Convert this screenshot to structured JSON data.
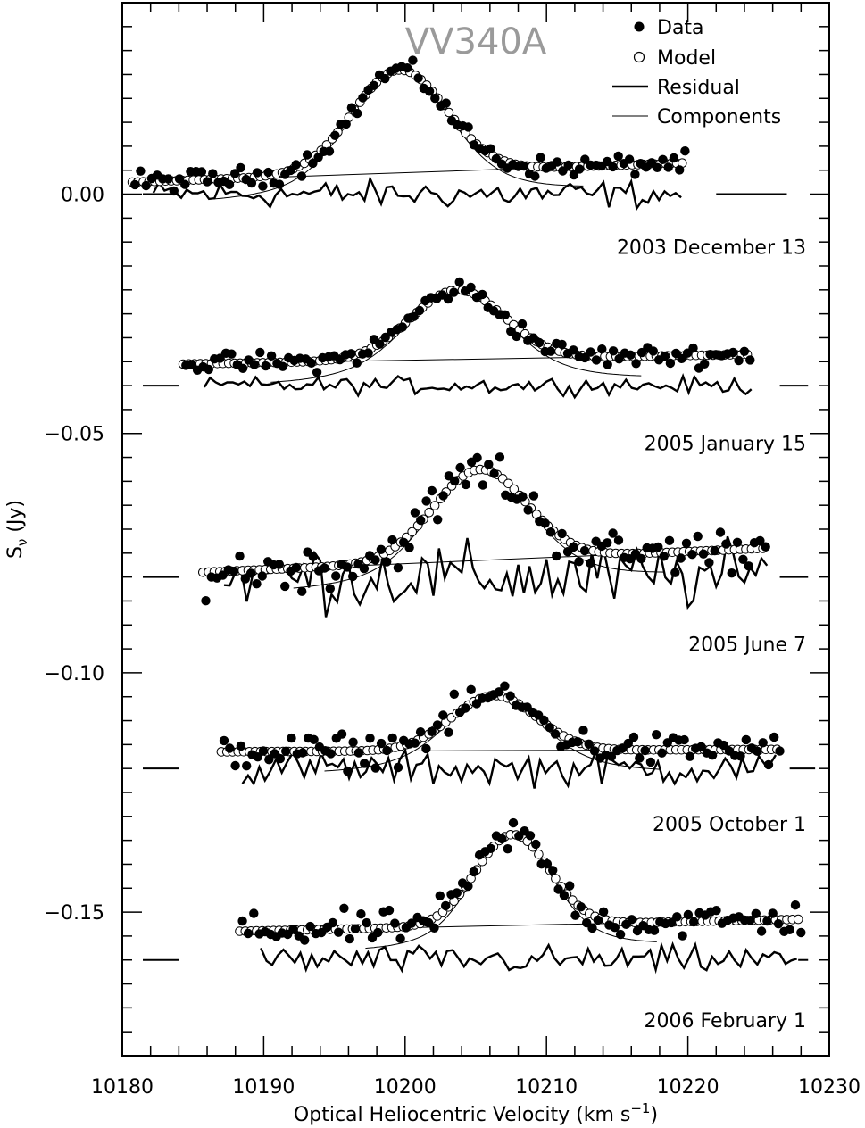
{
  "chart_data": {
    "type": "scatter",
    "title": "VV340A",
    "xlabel": "Optical Heliocentric Velocity (km s",
    "xlabel_sup": "−1",
    "xlabel_end": ")",
    "ylabel": "S",
    "ylabel_sub": "ν",
    "ylabel_end": " (Jy)",
    "xlim": [
      10180,
      10230
    ],
    "ylim": [
      -0.18,
      0.04
    ],
    "x_ticks": [
      10180,
      10190,
      10200,
      10210,
      10220,
      10230
    ],
    "x_tick_labels": [
      "10180",
      "10190",
      "10200",
      "10210",
      "10220",
      "10230"
    ],
    "y_ticks": [
      0.0,
      -0.05,
      -0.1,
      -0.15
    ],
    "y_tick_labels": [
      "0.00",
      "−0.05",
      "−0.10",
      "−0.15"
    ],
    "legend": {
      "position": "top-right",
      "items": [
        {
          "label": "Data",
          "marker": "filled-circle"
        },
        {
          "label": "Model",
          "marker": "open-circle"
        },
        {
          "label": "Residual",
          "marker": "thick-line"
        },
        {
          "label": "Components",
          "marker": "thin-line"
        }
      ]
    },
    "series": [
      {
        "name": "2003 December 13",
        "x_start": 10180.7,
        "x_end": 10219.6,
        "baseline_start": 0.0025,
        "baseline_end": 0.0065,
        "peak_center": 10199.6,
        "peak_amp": 0.0215,
        "peak_sigma": 3.3,
        "noise": 0.0018,
        "residual_level": 0.0,
        "residual_noise": 0.0025,
        "offset_line": [
          10222,
          10227
        ]
      },
      {
        "name": "2005 January 15",
        "x_start": 10184.3,
        "x_end": 10224.2,
        "baseline_start": -0.0355,
        "baseline_end": -0.0335,
        "peak_center": 10203.7,
        "peak_amp": 0.0145,
        "peak_sigma": 3.3,
        "noise": 0.0018,
        "residual_level": -0.04,
        "residual_noise": 0.0015,
        "offset_line": [
          10226.5,
          10228.5
        ]
      },
      {
        "name": "2005 June 7",
        "x_start": 10185.7,
        "x_end": 10225.3,
        "baseline_start": -0.079,
        "baseline_end": -0.074,
        "peak_center": 10205.3,
        "peak_amp": 0.019,
        "peak_sigma": 3.3,
        "noise": 0.004,
        "residual_level": -0.08,
        "residual_noise": 0.006,
        "offset_line": [
          10226.5,
          10228.5
        ]
      },
      {
        "name": "2005 October 1",
        "x_start": 10187.0,
        "x_end": 10226.3,
        "baseline_start": -0.1165,
        "baseline_end": -0.116,
        "peak_center": 10206.3,
        "peak_amp": 0.0115,
        "peak_sigma": 3.0,
        "noise": 0.003,
        "residual_level": -0.12,
        "residual_noise": 0.003,
        "offset_line": [
          10227.2,
          10229.0
        ]
      },
      {
        "name": "2006 February 1",
        "x_start": 10188.3,
        "x_end": 10227.8,
        "baseline_start": -0.154,
        "baseline_end": -0.1515,
        "peak_center": 10207.6,
        "peak_amp": 0.019,
        "peak_sigma": 2.6,
        "noise": 0.003,
        "residual_level": -0.16,
        "residual_noise": 0.0025,
        "offset_line": [
          10227.8,
          10228.5
        ]
      }
    ]
  }
}
